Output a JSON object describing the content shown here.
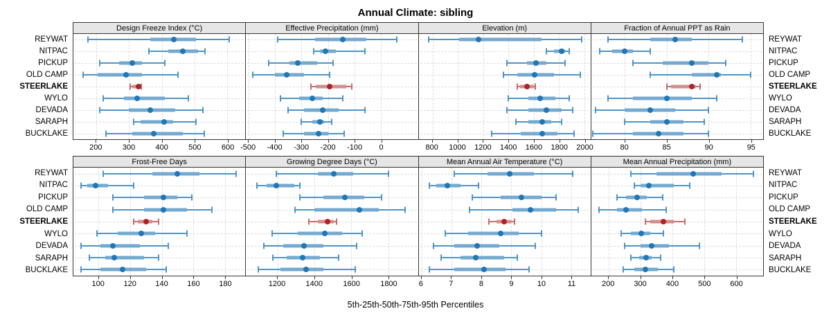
{
  "title": "Annual Climate: sibling",
  "caption": "5th-25th-50th-75th-95th Percentiles",
  "sites": [
    "REYWAT",
    "NITPAC",
    "PICKUP",
    "OLD CAMP",
    "STEERLAKE",
    "WYLO",
    "DEVADA",
    "SARAPH",
    "BUCKLAKE"
  ],
  "highlight_site": "STEERLAKE",
  "percentiles": [
    5,
    25,
    50,
    75,
    95
  ],
  "colors": {
    "series_dot": "#1F77B4",
    "series_band": "#74A9D0",
    "series_whisker": "#4D94C8",
    "highlight_dot": "#B22222",
    "highlight_band": "#D08E8E",
    "highlight_whisker": "#C96A6A",
    "strip_bg": "#E6E6E6",
    "grid": "#DCDCDC",
    "border": "#333333",
    "text": "#000000"
  },
  "chart_data": [
    {
      "type": "dotplot-percentiles",
      "title": "Design Freeze Index (°C)",
      "domain": [
        130,
        655
      ],
      "ticks": [
        200,
        300,
        400,
        500,
        600
      ],
      "series": [
        [
          175,
          365,
          437,
          505,
          605
        ],
        [
          360,
          420,
          465,
          510,
          532
        ],
        [
          210,
          270,
          310,
          340,
          410
        ],
        [
          160,
          205,
          290,
          340,
          450
        ],
        [
          303,
          309,
          329,
          334,
          338
        ],
        [
          220,
          285,
          325,
          410,
          480
        ],
        [
          210,
          300,
          365,
          440,
          525
        ],
        [
          315,
          335,
          407,
          435,
          505
        ],
        [
          230,
          310,
          375,
          465,
          530
        ]
      ]
    },
    {
      "type": "dotplot-percentiles",
      "title": "Effective Precipitation (mm)",
      "domain": [
        -510,
        140
      ],
      "ticks": [
        -500,
        -400,
        -300,
        -200,
        -100,
        0
      ],
      "series": [
        [
          -390,
          -250,
          -145,
          -55,
          60
        ],
        [
          -255,
          -230,
          -210,
          -170,
          -60
        ],
        [
          -425,
          -345,
          -315,
          -240,
          -180
        ],
        [
          -485,
          -400,
          -355,
          -290,
          -195
        ],
        [
          -265,
          -245,
          -195,
          -130,
          -110
        ],
        [
          -380,
          -310,
          -260,
          -220,
          -145
        ],
        [
          -350,
          -290,
          -220,
          -160,
          -60
        ],
        [
          -300,
          -260,
          -230,
          -215,
          -185
        ],
        [
          -370,
          -290,
          -235,
          -200,
          -140
        ]
      ]
    },
    {
      "type": "dotplot-percentiles",
      "title": "Elevation (m)",
      "domain": [
        690,
        2050
      ],
      "ticks": [
        800,
        1000,
        1200,
        1400,
        1600,
        1800,
        2000
      ],
      "series": [
        [
          770,
          1010,
          1165,
          1660,
          1980
        ],
        [
          1700,
          1760,
          1820,
          1850,
          1880
        ],
        [
          1390,
          1550,
          1620,
          1700,
          1850
        ],
        [
          1360,
          1470,
          1610,
          1760,
          1970
        ],
        [
          1470,
          1490,
          1550,
          1600,
          1615
        ],
        [
          1400,
          1560,
          1650,
          1770,
          1880
        ],
        [
          1390,
          1560,
          1700,
          1820,
          1910
        ],
        [
          1460,
          1560,
          1670,
          1740,
          1820
        ],
        [
          1270,
          1500,
          1670,
          1790,
          1920
        ]
      ]
    },
    {
      "type": "dotplot-percentiles",
      "title": "Fraction of Annual PPT as Rain",
      "domain": [
        76,
        96.5
      ],
      "ticks": [
        80,
        85,
        90,
        95
      ],
      "series": [
        [
          78,
          83,
          86,
          88,
          94
        ],
        [
          77,
          78.5,
          80,
          81,
          83
        ],
        [
          81,
          84.5,
          88,
          90,
          92
        ],
        [
          83,
          88,
          91,
          91.5,
          95
        ],
        [
          85,
          85.5,
          88,
          88.5,
          89
        ],
        [
          78,
          81,
          85,
          88,
          91
        ],
        [
          76.5,
          80,
          83,
          86,
          90
        ],
        [
          80,
          83,
          85,
          87,
          89.5
        ],
        [
          76.2,
          81,
          84,
          87,
          90
        ]
      ]
    },
    {
      "type": "dotplot-percentiles",
      "title": "Frost-Free Days",
      "domain": [
        84,
        193
      ],
      "ticks": [
        100,
        120,
        140,
        160,
        180
      ],
      "series": [
        [
          103,
          134,
          150,
          164,
          187
        ],
        [
          89,
          93,
          98,
          106,
          122
        ],
        [
          109,
          129,
          141,
          150,
          159
        ],
        [
          109,
          129,
          141,
          156,
          172
        ],
        [
          122,
          125,
          130,
          134,
          138
        ],
        [
          99,
          112,
          127,
          136,
          156
        ],
        [
          89,
          101,
          109,
          126,
          144
        ],
        [
          94,
          104,
          110,
          129,
          138
        ],
        [
          89,
          101,
          115,
          130,
          143
        ]
      ]
    },
    {
      "type": "dotplot-percentiles",
      "title": "Growing Degree Days (°C)",
      "domain": [
        1030,
        1960
      ],
      "ticks": [
        1200,
        1400,
        1600,
        1800
      ],
      "series": [
        [
          1195,
          1420,
          1505,
          1610,
          1800
        ],
        [
          1090,
          1140,
          1195,
          1290,
          1320
        ],
        [
          1320,
          1450,
          1565,
          1670,
          1765
        ],
        [
          1295,
          1400,
          1645,
          1750,
          1890
        ],
        [
          1370,
          1420,
          1470,
          1505,
          1520
        ],
        [
          1170,
          1310,
          1455,
          1550,
          1660
        ],
        [
          1125,
          1230,
          1345,
          1450,
          1630
        ],
        [
          1175,
          1250,
          1335,
          1430,
          1530
        ],
        [
          1095,
          1215,
          1355,
          1450,
          1620
        ]
      ]
    },
    {
      "type": "dotplot-percentiles",
      "title": "Mean Annual Air Temperature (°C)",
      "domain": [
        5.9,
        11.65
      ],
      "ticks": [
        6,
        7,
        8,
        9,
        10,
        11
      ],
      "series": [
        [
          7.1,
          8.2,
          8.95,
          9.75,
          11.05
        ],
        [
          6.25,
          6.5,
          6.85,
          7.3,
          7.9
        ],
        [
          7.7,
          8.65,
          9.35,
          10.0,
          10.5
        ],
        [
          7.6,
          9.05,
          9.65,
          10.5,
          11.25
        ],
        [
          8.25,
          8.5,
          8.75,
          9.0,
          9.1
        ],
        [
          6.8,
          7.55,
          8.65,
          9.25,
          10.0
        ],
        [
          6.4,
          7.1,
          7.85,
          8.6,
          9.8
        ],
        [
          6.65,
          7.3,
          7.8,
          8.75,
          9.2
        ],
        [
          6.25,
          7.1,
          8.1,
          8.8,
          9.6
        ]
      ]
    },
    {
      "type": "dotplot-percentiles",
      "title": "Mean Annual Precipitation (mm)",
      "domain": [
        145,
        685
      ],
      "ticks": [
        200,
        300,
        400,
        500,
        600
      ],
      "series": [
        [
          270,
          350,
          465,
          555,
          655
        ],
        [
          280,
          300,
          325,
          405,
          455
        ],
        [
          225,
          255,
          290,
          320,
          370
        ],
        [
          170,
          225,
          255,
          305,
          380
        ],
        [
          315,
          330,
          372,
          405,
          440
        ],
        [
          240,
          270,
          302,
          330,
          372
        ],
        [
          250,
          300,
          335,
          390,
          485
        ],
        [
          270,
          295,
          318,
          335,
          362
        ],
        [
          245,
          280,
          315,
          355,
          405
        ]
      ]
    }
  ]
}
